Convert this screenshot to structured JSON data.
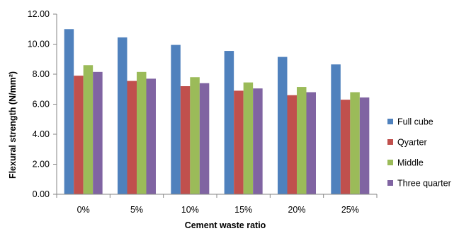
{
  "chart_data": {
    "type": "bar",
    "title": "",
    "xlabel": "Cement waste ratio",
    "ylabel": "Flexural strength (N/mm²)",
    "categories": [
      "0%",
      "5%",
      "10%",
      "15%",
      "20%",
      "25%"
    ],
    "ylim": [
      0,
      12
    ],
    "yticks": [
      "0.00",
      "2.00",
      "4.00",
      "6.00",
      "8.00",
      "10.00",
      "12.00"
    ],
    "grid": false,
    "legend_position": "right",
    "series": [
      {
        "name": "Full cube",
        "color": "#4F81BD",
        "values": [
          11.0,
          10.45,
          9.95,
          9.55,
          9.15,
          8.65
        ]
      },
      {
        "name": "Qyarter",
        "color": "#C0504D",
        "values": [
          7.9,
          7.55,
          7.2,
          6.9,
          6.6,
          6.3
        ]
      },
      {
        "name": "Middle",
        "color": "#9BBB59",
        "values": [
          8.6,
          8.15,
          7.8,
          7.45,
          7.15,
          6.8
        ]
      },
      {
        "name": "Three quarter",
        "color": "#8064A2",
        "values": [
          8.15,
          7.7,
          7.4,
          7.05,
          6.8,
          6.45
        ]
      }
    ]
  }
}
